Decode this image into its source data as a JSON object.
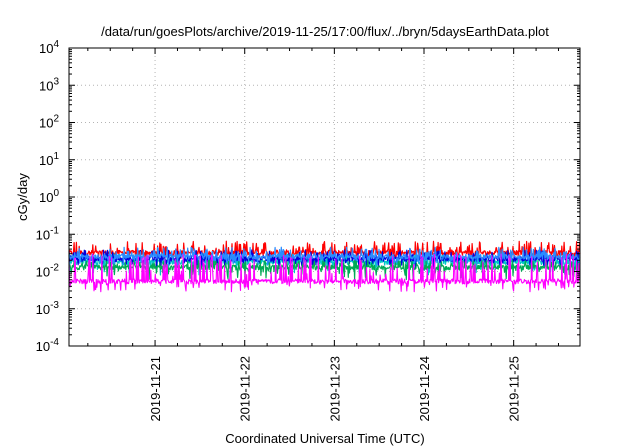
{
  "chart_data": {
    "type": "line",
    "title": "/data/run/goesPlots/archive/2019-11-25/17:00/flux/../bryn/5daysEarthData.plot",
    "xlabel": "Coordinated Universal Time (UTC)",
    "ylabel": "cGy/day",
    "yscale": "log",
    "ylim": [
      0.0001,
      10000
    ],
    "y_ticks": [
      {
        "value": 0.0001,
        "base": "10",
        "exp": "-4"
      },
      {
        "value": 0.001,
        "base": "10",
        "exp": "-3"
      },
      {
        "value": 0.01,
        "base": "10",
        "exp": "-2"
      },
      {
        "value": 0.1,
        "base": "10",
        "exp": "-1"
      },
      {
        "value": 1,
        "base": "10",
        "exp": "0"
      },
      {
        "value": 10,
        "base": "10",
        "exp": "1"
      },
      {
        "value": 100,
        "base": "10",
        "exp": "2"
      },
      {
        "value": 1000,
        "base": "10",
        "exp": "3"
      },
      {
        "value": 10000,
        "base": "10",
        "exp": "4"
      }
    ],
    "xlim_days": [
      -0.96,
      4.74
    ],
    "x_ticks": [
      {
        "day": 0,
        "label": "2019-11-21"
      },
      {
        "day": 1,
        "label": "2019-11-22"
      },
      {
        "day": 2,
        "label": "2019-11-23"
      },
      {
        "day": 3,
        "label": "2019-11-24"
      },
      {
        "day": 4,
        "label": "2019-11-25"
      }
    ],
    "grid": true,
    "legend": "none",
    "series": [
      {
        "color": "#ff0000",
        "base": 0.032,
        "spike": 0.065,
        "dip": 0.022
      },
      {
        "color": "#00c8c8",
        "base": 0.018,
        "spike": 0.03,
        "dip": 0.008
      },
      {
        "color": "#0000dd",
        "base": 0.022,
        "spike": 0.038,
        "dip": 0.012
      },
      {
        "color": "#2a8cff",
        "base": 0.025,
        "spike": 0.045,
        "dip": 0.014
      },
      {
        "color": "#00aa55",
        "base": 0.013,
        "spike": 0.02,
        "dip": 0.006
      },
      {
        "color": "#ff00ff",
        "base": 0.0055,
        "spike": 0.03,
        "dip": 0.0028
      }
    ]
  }
}
